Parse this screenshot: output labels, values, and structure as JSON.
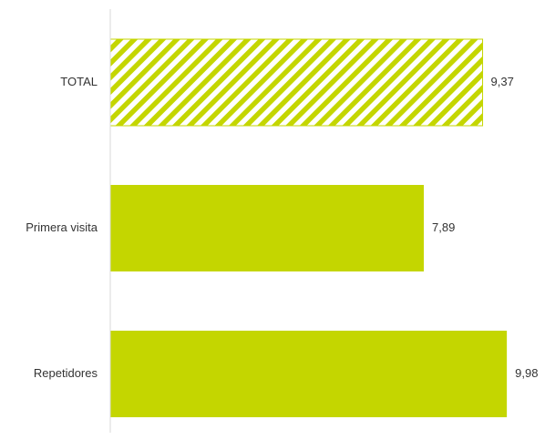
{
  "chart_data": {
    "type": "bar",
    "orientation": "horizontal",
    "categories": [
      "TOTAL",
      "Primera visita",
      "Repetidores"
    ],
    "values": [
      9.37,
      7.89,
      9.98
    ],
    "value_labels": [
      "9,37",
      "7,89",
      "9,98"
    ],
    "bar_styles": [
      "hatched",
      "solid",
      "solid"
    ],
    "xlim": [
      0,
      10
    ],
    "grid": false,
    "legend": "none",
    "title": "",
    "xlabel": "",
    "ylabel": ""
  },
  "colors": {
    "bar_fill": "#c4d600",
    "hatch_background": "#ffffff",
    "axis_line": "#d9d9d9",
    "text": "#333333"
  }
}
